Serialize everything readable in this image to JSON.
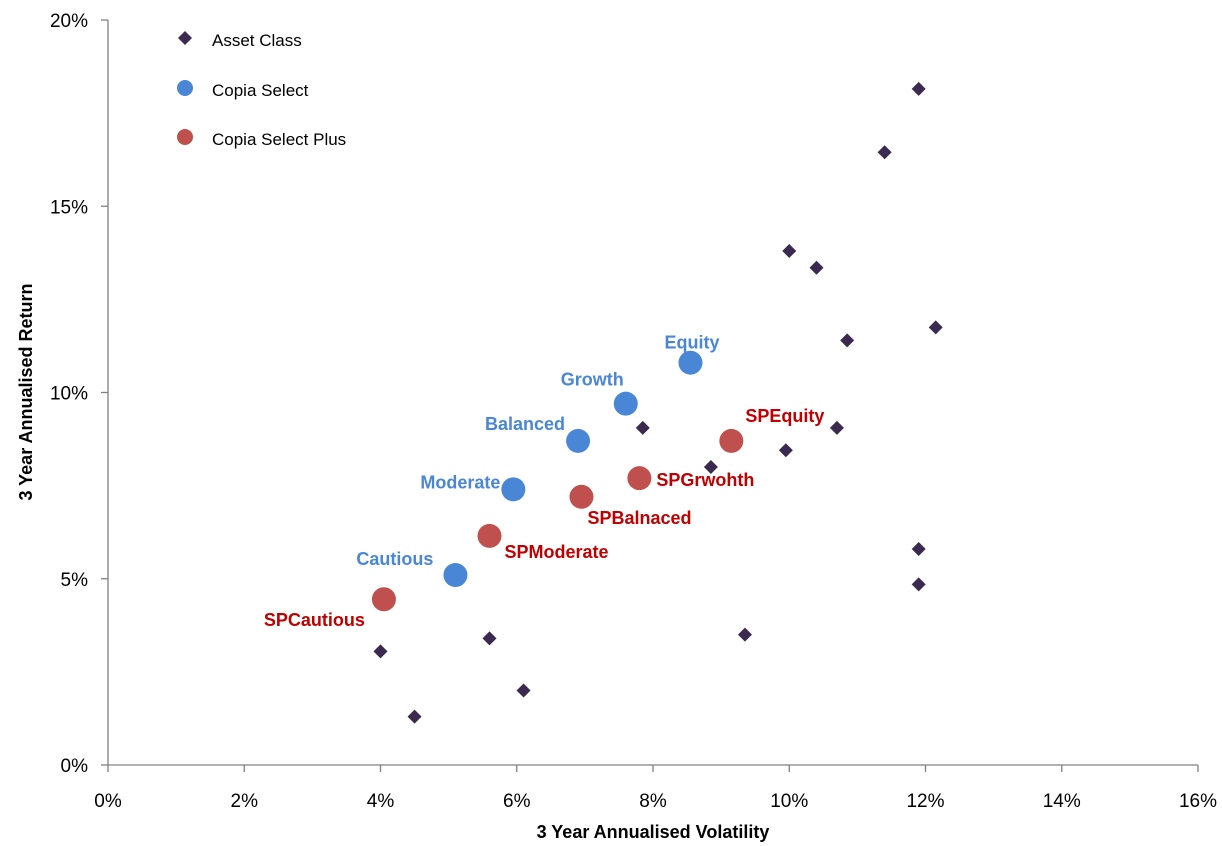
{
  "chart_data": {
    "type": "scatter",
    "xlabel": "3 Year Annualised Volatility",
    "ylabel": "3 Year Annualised Return",
    "xlim": [
      0,
      16
    ],
    "ylim": [
      0,
      20
    ],
    "x_ticks": [
      "0%",
      "2%",
      "4%",
      "6%",
      "8%",
      "10%",
      "12%",
      "14%",
      "16%"
    ],
    "y_ticks": [
      "0%",
      "5%",
      "10%",
      "15%",
      "20%"
    ],
    "grid": false,
    "legend_position": "top-left",
    "legend": [
      "Asset Class",
      "Copia Select",
      "Copia Select Plus"
    ],
    "series": [
      {
        "name": "Asset Class",
        "marker": "diamond",
        "color": "#3b2a4f",
        "points": [
          {
            "x": 4.0,
            "y": 3.05
          },
          {
            "x": 4.5,
            "y": 1.3
          },
          {
            "x": 5.6,
            "y": 3.4
          },
          {
            "x": 6.1,
            "y": 2.0
          },
          {
            "x": 7.85,
            "y": 9.05
          },
          {
            "x": 8.85,
            "y": 8.0
          },
          {
            "x": 9.35,
            "y": 3.5
          },
          {
            "x": 9.95,
            "y": 8.45
          },
          {
            "x": 10.0,
            "y": 13.8
          },
          {
            "x": 10.4,
            "y": 13.35
          },
          {
            "x": 10.85,
            "y": 11.4
          },
          {
            "x": 10.7,
            "y": 9.05
          },
          {
            "x": 11.4,
            "y": 16.45
          },
          {
            "x": 11.9,
            "y": 18.15
          },
          {
            "x": 12.15,
            "y": 11.75
          },
          {
            "x": 11.9,
            "y": 5.8
          },
          {
            "x": 11.9,
            "y": 4.85
          }
        ]
      },
      {
        "name": "Copia Select",
        "marker": "circle",
        "color": "#4a86d6",
        "points": [
          {
            "x": 5.1,
            "y": 5.1,
            "label": "Cautious"
          },
          {
            "x": 5.95,
            "y": 7.4,
            "label": "Moderate"
          },
          {
            "x": 6.9,
            "y": 8.7,
            "label": "Balanced"
          },
          {
            "x": 7.6,
            "y": 9.7,
            "label": "Growth"
          },
          {
            "x": 8.55,
            "y": 10.8,
            "label": "Equity"
          }
        ]
      },
      {
        "name": "Copia Select Plus",
        "marker": "circle",
        "color": "#c0504d",
        "label_color": "#c00000",
        "points": [
          {
            "x": 4.05,
            "y": 4.45,
            "label": "SPCautious"
          },
          {
            "x": 5.6,
            "y": 6.15,
            "label": "SPModerate"
          },
          {
            "x": 6.95,
            "y": 7.2,
            "label": "SPBalnaced"
          },
          {
            "x": 7.8,
            "y": 7.7,
            "label": "SPGrwohth"
          },
          {
            "x": 9.15,
            "y": 8.7,
            "label": "SPEquity"
          }
        ]
      }
    ]
  }
}
